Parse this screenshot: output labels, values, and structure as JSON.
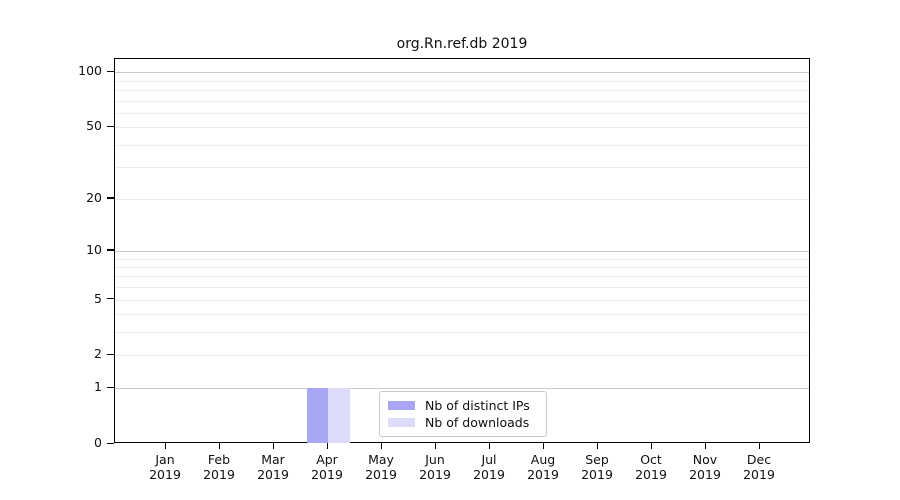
{
  "chart_data": {
    "type": "bar",
    "title": "org.Rn.ref.db 2019",
    "x_axis": {
      "months": [
        "Jan",
        "Feb",
        "Mar",
        "Apr",
        "May",
        "Jun",
        "Jul",
        "Aug",
        "Sep",
        "Oct",
        "Nov",
        "Dec"
      ],
      "year": "2019"
    },
    "y_axis": {
      "scale": "log1p",
      "tick_values": [
        0,
        1,
        2,
        5,
        10,
        20,
        50,
        100
      ],
      "major_gridlines": [
        1,
        10,
        100
      ],
      "minor_gridlines": [
        2,
        3,
        4,
        5,
        6,
        7,
        8,
        9,
        20,
        30,
        40,
        50,
        60,
        70,
        80,
        90
      ],
      "axis_max": 118,
      "axis_min": 0
    },
    "series": [
      {
        "name": "Nb of distinct IPs",
        "color": "#a6a6f2",
        "values": [
          0,
          0,
          0,
          1,
          0,
          0,
          0,
          0,
          0,
          0,
          0,
          0
        ]
      },
      {
        "name": "Nb of downloads",
        "color": "#dcdcfa",
        "values": [
          0,
          0,
          0,
          1,
          0,
          0,
          0,
          0,
          0,
          0,
          0,
          0
        ]
      }
    ],
    "legend": {
      "position": "lower center"
    },
    "grid": "horizontal"
  },
  "colors": {
    "background": "#ffffff",
    "axis": "#000000",
    "major_grid": "#cbcbcb",
    "minor_grid": "#ededed",
    "legend_border": "#c8c8c8",
    "bar_distinct_ips": "#a6a6f2",
    "bar_downloads": "#dcdcfa"
  }
}
